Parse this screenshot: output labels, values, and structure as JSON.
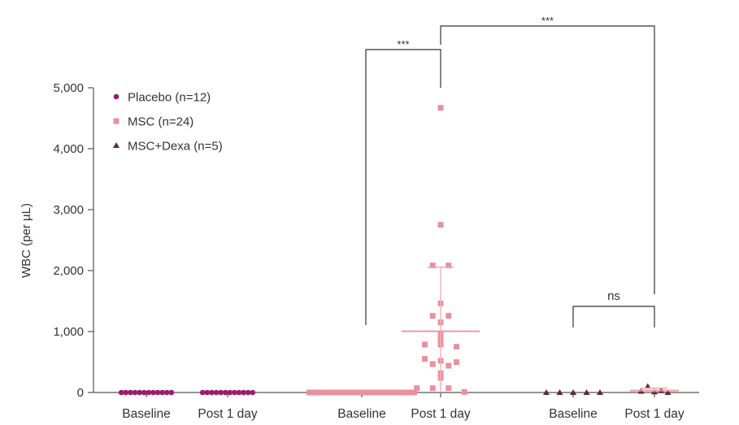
{
  "chart_data": {
    "type": "scatter",
    "title": "",
    "xlabel": "",
    "ylabel": "WBC (per µL)",
    "ylim": [
      0,
      5000
    ],
    "yticks": [
      0,
      1000,
      2000,
      3000,
      4000,
      5000
    ],
    "ytick_labels": [
      "0",
      "1,000",
      "2,000",
      "3,000",
      "4,000",
      "5,000"
    ],
    "legend_position": "top-left",
    "legend": [
      {
        "label": "Placebo (n=12)",
        "marker": "circle",
        "color": "#9b1b6e"
      },
      {
        "label": "MSC (n=24)",
        "marker": "square",
        "color": "#e8909c"
      },
      {
        "label": "MSC+Dexa (n=5)",
        "marker": "triangle",
        "color": "#5b2a3c"
      }
    ],
    "groups": [
      {
        "series": "Placebo",
        "label": "Baseline",
        "color": "#9b1b6e",
        "marker": "circle",
        "values": [
          0,
          0,
          0,
          0,
          0,
          0,
          0,
          0,
          0,
          0,
          0,
          0
        ]
      },
      {
        "series": "Placebo",
        "label": "Post 1 day",
        "color": "#9b1b6e",
        "marker": "circle",
        "values": [
          0,
          0,
          0,
          0,
          0,
          0,
          0,
          0,
          0,
          0,
          0,
          0
        ]
      },
      {
        "series": "MSC",
        "label": "Baseline",
        "color": "#e8909c",
        "marker": "square",
        "values": [
          0,
          0,
          0,
          0,
          0,
          0,
          0,
          0,
          0,
          0,
          0,
          0,
          0,
          0,
          0,
          0,
          0,
          0,
          0,
          0,
          0,
          0,
          0,
          0
        ]
      },
      {
        "series": "MSC",
        "label": "Post 1 day",
        "color": "#e8909c",
        "marker": "square",
        "values": [
          4671,
          2751,
          2084,
          2084,
          1462,
          1258,
          1258,
          1151,
          951,
          862,
          787,
          787,
          751,
          551,
          520,
          498,
          467,
          440,
          316,
          240,
          71,
          71,
          71,
          9
        ],
        "mean": 1005,
        "sd": 1050
      },
      {
        "series": "MSC+Dexa",
        "label": "Baseline",
        "color": "#5b2a3c",
        "marker": "triangle",
        "values": [
          0,
          0,
          0,
          0,
          0
        ]
      },
      {
        "series": "MSC+Dexa",
        "label": "Post 1 day",
        "color": "#5b2a3c",
        "marker": "triangle",
        "values": [
          100,
          30,
          20,
          10,
          0
        ],
        "mean": 32,
        "sd": 40
      }
    ],
    "annotations": [
      {
        "from_group": 2,
        "to_group": 3,
        "text": "***"
      },
      {
        "from_group": 3,
        "to_group": 5,
        "text": "***"
      },
      {
        "from_group": 4,
        "to_group": 5,
        "text": "ns"
      }
    ]
  }
}
